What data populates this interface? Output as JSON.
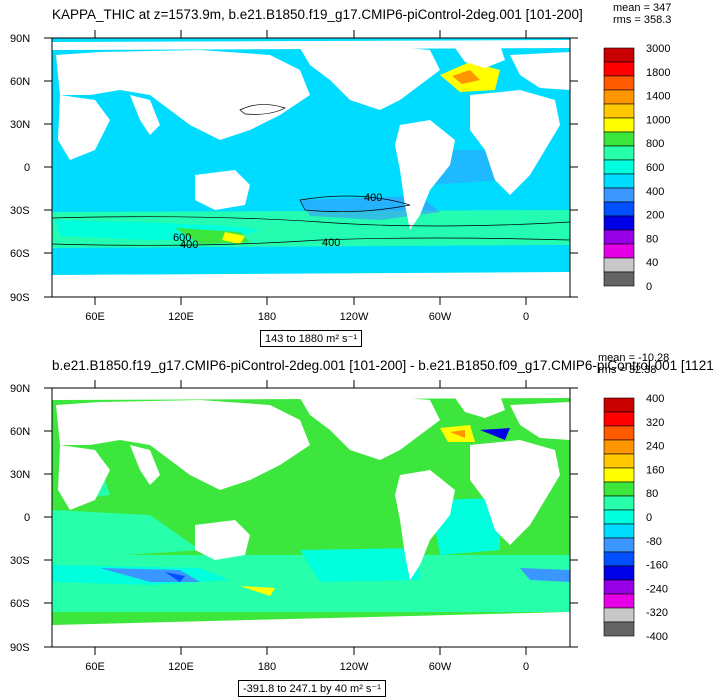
{
  "panels": [
    {
      "title": "KAPPA_THIC at z=1573.9m, b.e21.B1850.f19_g17.CMIP6-piControl-2deg.001 [101-200]",
      "stats_mean": "mean = 347",
      "stats_rms": "rms = 358.3",
      "range": "143 to 1880 m² s⁻¹",
      "lat_ticks": [
        "90N",
        "60N",
        "30N",
        "0",
        "30S",
        "60S",
        "90S"
      ],
      "lon_ticks": [
        "60E",
        "120E",
        "180",
        "120W",
        "60W",
        "0"
      ],
      "colorbar_labels": [
        "3000",
        "1800",
        "1400",
        "1000",
        "800",
        "600",
        "400",
        "200",
        "80",
        "40",
        "0"
      ],
      "colorbar_colors": [
        "#c80000",
        "#ff0000",
        "#ff5a00",
        "#ff9600",
        "#ffc800",
        "#ffff00",
        "#3ce63c",
        "#28ffaa",
        "#00ffdc",
        "#00dcff",
        "#3c96ff",
        "#0050ff",
        "#0000e6",
        "#9600e6",
        "#e600e6",
        "#c8c8c8",
        "#646464"
      ],
      "contour_labels": [
        "400",
        "600",
        "400",
        "400"
      ]
    },
    {
      "title": "b.e21.B1850.f19_g17.CMIP6-piControl-2deg.001 [101-200] - b.e21.B1850.f09_g17.CMIP6-piControl.001 [1121",
      "stats_mean": "mean = -10.28",
      "stats_rms": "rms = 32.38",
      "range": "-391.8 to 247.1 by 40 m² s⁻¹",
      "lat_ticks": [
        "90N",
        "60N",
        "30N",
        "0",
        "30S",
        "60S",
        "90S"
      ],
      "lon_ticks": [
        "60E",
        "120E",
        "180",
        "120W",
        "60W",
        "0"
      ],
      "colorbar_labels": [
        "400",
        "320",
        "240",
        "160",
        "80",
        "0",
        "-80",
        "-160",
        "-240",
        "-320",
        "-400"
      ],
      "colorbar_colors": [
        "#c80000",
        "#ff0000",
        "#ff5a00",
        "#ff9600",
        "#ffc800",
        "#ffff00",
        "#3ce63c",
        "#28ffaa",
        "#00ffdc",
        "#00dcff",
        "#3c96ff",
        "#0050ff",
        "#0000e6",
        "#9600e6",
        "#e600e6",
        "#c8c8c8",
        "#646464"
      ],
      "contour_labels": []
    }
  ],
  "colors": {
    "ocean_top": "#00dcff",
    "ocean_top_high": "#28ffaa",
    "ocean_top_mid": "#3c96ff",
    "ocean_bottom": "#3ce63c",
    "ocean_bottom_neg": "#00dcff",
    "ocean_bottom_neg2": "#3c96ff",
    "land": "#ffffff"
  }
}
